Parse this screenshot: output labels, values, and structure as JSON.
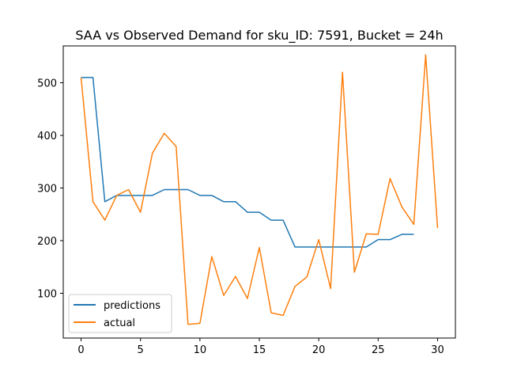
{
  "chart_data": {
    "type": "line",
    "title": "SAA vs Observed Demand for sku_ID: 7591, Bucket = 24h",
    "xlabel": "",
    "ylabel": "",
    "xlim": [
      -1.5,
      31.5
    ],
    "ylim": [
      15,
      570
    ],
    "xticks": [
      0,
      5,
      10,
      15,
      20,
      25,
      30
    ],
    "yticks": [
      100,
      200,
      300,
      400,
      500
    ],
    "grid": false,
    "legend_position": "lower-left",
    "series": [
      {
        "name": "predictions",
        "color": "#1f77b4",
        "x": [
          0,
          1,
          2,
          3,
          4,
          5,
          6,
          7,
          8,
          9,
          10,
          11,
          12,
          13,
          14,
          15,
          16,
          17,
          18,
          19,
          20,
          21,
          22,
          23,
          24,
          25,
          26,
          27,
          28
        ],
        "y": [
          510,
          510,
          274,
          286,
          286,
          286,
          286,
          297,
          297,
          297,
          286,
          286,
          274,
          274,
          254,
          254,
          239,
          239,
          188,
          188,
          188,
          188,
          188,
          188,
          188,
          202,
          202,
          212,
          212
        ]
      },
      {
        "name": "actual",
        "color": "#ff7f0e",
        "x": [
          0,
          1,
          2,
          3,
          4,
          5,
          6,
          7,
          8,
          9,
          10,
          11,
          12,
          13,
          14,
          15,
          16,
          17,
          18,
          19,
          20,
          21,
          22,
          23,
          24,
          25,
          26,
          27,
          28,
          29,
          30
        ],
        "y": [
          510,
          274,
          239,
          286,
          297,
          254,
          366,
          404,
          379,
          41,
          43,
          170,
          96,
          132,
          90,
          187,
          63,
          58,
          113,
          131,
          202,
          109,
          520,
          140,
          213,
          212,
          318,
          264,
          231,
          553,
          224
        ]
      }
    ]
  }
}
